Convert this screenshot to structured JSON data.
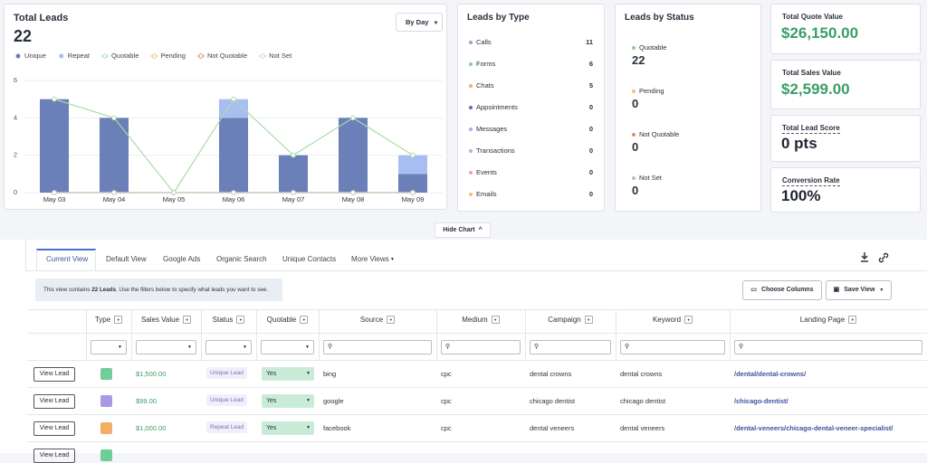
{
  "chart_data": {
    "type": "bar",
    "title": "Total Leads",
    "total": 22,
    "period": "By Day",
    "stacked": true,
    "grid": true,
    "categories": [
      "May 03",
      "May 04",
      "May 05",
      "May 06",
      "May 07",
      "May 08",
      "May 09"
    ],
    "series": [
      {
        "name": "Unique",
        "type": "bar",
        "color": "#6b7fb8",
        "values": [
          5,
          4,
          0,
          4,
          2,
          4,
          1
        ]
      },
      {
        "name": "Repeat",
        "type": "bar",
        "color": "#a9bef0",
        "values": [
          0,
          0,
          0,
          1,
          0,
          0,
          1
        ]
      },
      {
        "name": "Quotable",
        "type": "line",
        "color": "#a8dca8",
        "values": [
          5,
          4,
          0,
          5,
          2,
          4,
          2
        ]
      },
      {
        "name": "Pending",
        "type": "line",
        "color": "#f2c26e",
        "values": [
          0,
          0,
          0,
          0,
          0,
          0,
          0
        ]
      },
      {
        "name": "Not Quotable",
        "type": "line",
        "color": "#e9866f",
        "values": [
          0,
          0,
          0,
          0,
          0,
          0,
          0
        ]
      },
      {
        "name": "Not Set",
        "type": "line",
        "color": "#cfcfcf",
        "values": [
          0,
          0,
          0,
          0,
          0,
          0,
          0
        ]
      }
    ],
    "ylim": [
      0,
      6
    ],
    "yticks": [
      0,
      2,
      4,
      6
    ]
  },
  "leads_by_type": {
    "title": "Leads by Type",
    "items": [
      {
        "label": "Calls",
        "count": 11,
        "color": "#9aa3c8"
      },
      {
        "label": "Forms",
        "count": 6,
        "color": "#7fd19a"
      },
      {
        "label": "Chats",
        "count": 5,
        "color": "#f2b06a"
      },
      {
        "label": "Appointments",
        "count": 0,
        "color": "#5b6fb0"
      },
      {
        "label": "Messages",
        "count": 0,
        "color": "#9fb4e8"
      },
      {
        "label": "Transactions",
        "count": 0,
        "color": "#a6b6de"
      },
      {
        "label": "Events",
        "count": 0,
        "color": "#e2a0d8"
      },
      {
        "label": "Emails",
        "count": 0,
        "color": "#f2c26e"
      }
    ]
  },
  "leads_by_status": {
    "title": "Leads by Status",
    "items": [
      {
        "label": "Quotable",
        "count": 22,
        "color": "#7fd19a"
      },
      {
        "label": "Pending",
        "count": 0,
        "color": "#f2c26e"
      },
      {
        "label": "Not Quotable",
        "count": 0,
        "color": "#e9866f"
      },
      {
        "label": "Not Set",
        "count": 0,
        "color": "#bdbdbd"
      }
    ]
  },
  "kpis": [
    {
      "label": "Total Quote Value",
      "value": "$26,150.00",
      "color": "#3a9e66"
    },
    {
      "label": "Total Sales Value",
      "value": "$2,599.00",
      "color": "#3a9e66"
    },
    {
      "label": "Total Lead Score",
      "value": "0 pts",
      "color": "#1f2430"
    },
    {
      "label": "Conversion Rate",
      "value": "100%",
      "color": "#1f2430"
    }
  ],
  "hide_chart": "Hide Chart",
  "tabs": [
    "Current View",
    "Default View",
    "Google Ads",
    "Organic Search",
    "Unique Contacts",
    "More Views"
  ],
  "info": {
    "before": "This view contains ",
    "bold": "22 Leads",
    "after": ". Use the filters below to specify what leads you want to see."
  },
  "buttons": [
    "Choose Columns",
    "Save View"
  ],
  "table": {
    "columns": [
      "Type",
      "Sales Value",
      "Status",
      "Quotable",
      "Source",
      "Medium",
      "Campaign",
      "Keyword",
      "Landing Page"
    ],
    "rows": [
      {
        "action": "View Lead",
        "icon_color": "#58c487",
        "sales_value": "$1,500.00",
        "status": "Unique Lead",
        "quotable": "Yes",
        "source": "bing",
        "medium": "cpc",
        "campaign": "dental crowns",
        "keyword": "dental crowns",
        "landing_page": "/dental/dental-crowns/"
      },
      {
        "action": "View Lead",
        "icon_color": "#9b86e0",
        "sales_value": "$99.00",
        "status": "Unique Lead",
        "quotable": "Yes",
        "source": "google",
        "medium": "cpc",
        "campaign": "chicago dentist",
        "keyword": "chicago dentist",
        "landing_page": "/chicago-dentist/"
      },
      {
        "action": "View Lead",
        "icon_color": "#f0a04a",
        "sales_value": "$1,000.00",
        "status": "Repeat Lead",
        "quotable": "Yes",
        "source": "facebook",
        "medium": "cpc",
        "campaign": "dental veneers",
        "keyword": "dental veneers",
        "landing_page": "/dental-veneers/chicago-dental-veneer-specialist/"
      },
      {
        "action": "View Lead",
        "icon_color": "#58c487"
      }
    ]
  }
}
